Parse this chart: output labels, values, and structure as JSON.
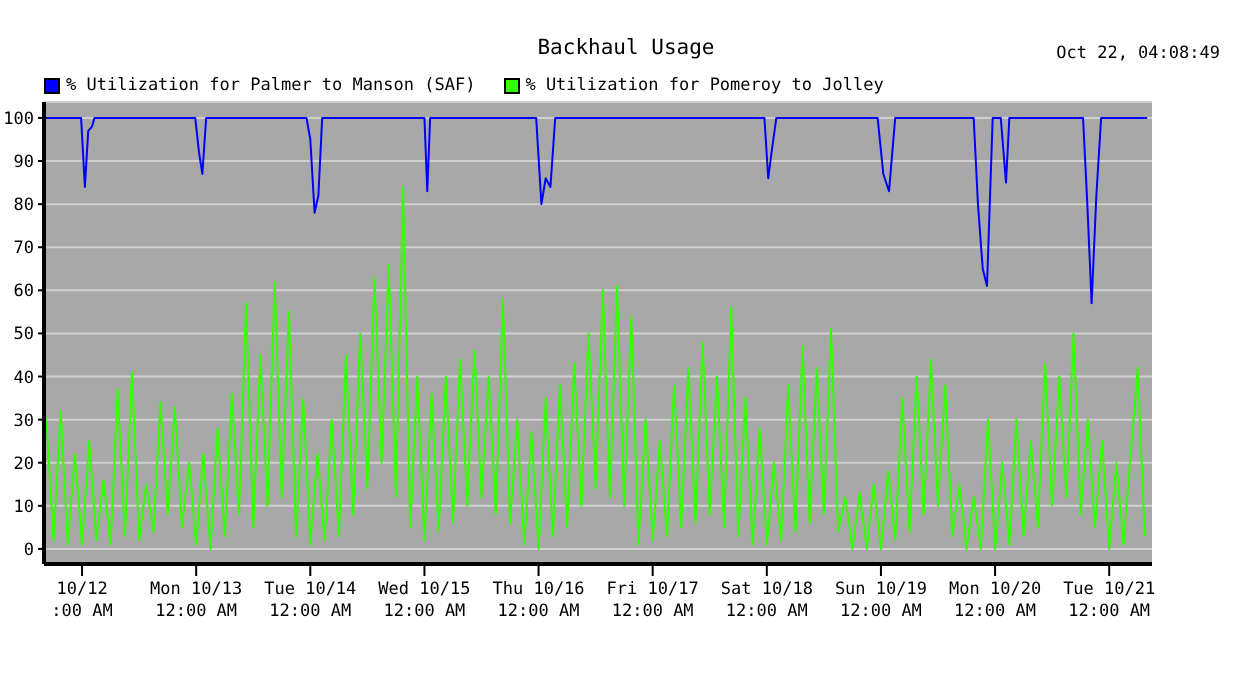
{
  "chart_data": {
    "type": "line",
    "title": "Backhaul Usage",
    "annotations": [
      "Oct 22, 04:08:49"
    ],
    "x": [
      "--10-11T16:30",
      "--10-11T18:00",
      "--10-11T19:30",
      "--10-11T21:00",
      "--10-11T22:30",
      "--10-12T00:00",
      "--10-12T01:30",
      "--10-12T03:00",
      "--10-12T04:30",
      "--10-12T06:00",
      "--10-12T07:30",
      "--10-12T09:00",
      "--10-12T10:30",
      "--10-12T12:00",
      "--10-12T13:30",
      "--10-12T15:00",
      "--10-12T16:30",
      "--10-12T18:00",
      "--10-12T19:30",
      "--10-12T21:00",
      "--10-12T22:30",
      "--10-13T00:00",
      "--10-13T01:30",
      "--10-13T03:00",
      "--10-13T04:30",
      "--10-13T06:00",
      "--10-13T07:30",
      "--10-13T09:00",
      "--10-13T10:30",
      "--10-13T12:00",
      "--10-13T13:30",
      "--10-13T15:00",
      "--10-13T16:30",
      "--10-13T18:00",
      "--10-13T19:30",
      "--10-13T21:00",
      "--10-13T22:30",
      "--10-14T00:00",
      "--10-14T01:30",
      "--10-14T03:00",
      "--10-14T04:30",
      "--10-14T06:00",
      "--10-14T07:30",
      "--10-14T09:00",
      "--10-14T10:30",
      "--10-14T12:00",
      "--10-14T13:30",
      "--10-14T15:00",
      "--10-14T16:30",
      "--10-14T18:00",
      "--10-14T19:30",
      "--10-14T21:00",
      "--10-14T22:30",
      "--10-15T00:00",
      "--10-15T01:30",
      "--10-15T03:00",
      "--10-15T04:30",
      "--10-15T06:00",
      "--10-15T07:30",
      "--10-15T09:00",
      "--10-15T10:30",
      "--10-15T12:00",
      "--10-15T13:30",
      "--10-15T15:00",
      "--10-15T16:30",
      "--10-15T18:00",
      "--10-15T19:30",
      "--10-15T21:00",
      "--10-15T22:30",
      "--10-16T00:00",
      "--10-16T01:30",
      "--10-16T03:00",
      "--10-16T04:30",
      "--10-16T06:00",
      "--10-16T07:30",
      "--10-16T09:00",
      "--10-16T10:30",
      "--10-16T12:00",
      "--10-16T13:30",
      "--10-16T15:00",
      "--10-16T16:30",
      "--10-16T18:00",
      "--10-16T19:30",
      "--10-16T21:00",
      "--10-16T22:30",
      "--10-17T00:00",
      "--10-17T01:30",
      "--10-17T03:00",
      "--10-17T04:30",
      "--10-17T06:00",
      "--10-17T07:30",
      "--10-17T09:00",
      "--10-17T10:30",
      "--10-17T12:00",
      "--10-17T13:30",
      "--10-17T15:00",
      "--10-17T16:30",
      "--10-17T18:00",
      "--10-17T19:30",
      "--10-17T21:00",
      "--10-17T22:30",
      "--10-18T00:00",
      "--10-18T01:30",
      "--10-18T03:00",
      "--10-18T04:30",
      "--10-18T06:00",
      "--10-18T07:30",
      "--10-18T09:00",
      "--10-18T10:30",
      "--10-18T12:00",
      "--10-18T13:30",
      "--10-18T15:00",
      "--10-18T16:30",
      "--10-18T18:00",
      "--10-18T19:30",
      "--10-18T21:00",
      "--10-18T22:30",
      "--10-19T00:00",
      "--10-19T01:30",
      "--10-19T03:00",
      "--10-19T04:30",
      "--10-19T06:00",
      "--10-19T07:30",
      "--10-19T09:00",
      "--10-19T10:30",
      "--10-19T12:00",
      "--10-19T13:30",
      "--10-19T15:00",
      "--10-19T16:30",
      "--10-19T18:00",
      "--10-19T19:30",
      "--10-19T21:00",
      "--10-19T22:30",
      "--10-20T00:00",
      "--10-20T01:30",
      "--10-20T03:00",
      "--10-20T04:30",
      "--10-20T06:00",
      "--10-20T07:30",
      "--10-20T09:00",
      "--10-20T10:30",
      "--10-20T12:00",
      "--10-20T13:30",
      "--10-20T15:00",
      "--10-20T16:30",
      "--10-20T18:00",
      "--10-20T19:30",
      "--10-20T21:00",
      "--10-20T22:30",
      "--10-21T00:00",
      "--10-21T01:30",
      "--10-21T03:00",
      "--10-21T04:30",
      "--10-21T06:00",
      "--10-21T07:30"
    ],
    "series": [
      {
        "name": "% Utilization for Palmer to Manson (SAF)",
        "color": "#0000ff",
        "x": [
          "--10-11T16:00",
          "--10-11T23:48",
          "--10-12T00:36",
          "--10-12T01:18",
          "--10-12T02:06",
          "--10-12T02:36",
          "--10-12T23:48",
          "--10-13T00:36",
          "--10-13T01:18",
          "--10-13T02:06",
          "--10-13T23:12",
          "--10-14T00:00",
          "--10-14T00:54",
          "--10-14T01:42",
          "--10-14T02:30",
          "--10-15T00:00",
          "--10-15T00:36",
          "--10-15T01:12",
          "--10-15T23:30",
          "--10-16T00:36",
          "--10-16T01:30",
          "--10-16T02:30",
          "--10-16T03:30",
          "--10-17T23:30",
          "--10-18T00:18",
          "--10-18T01:00",
          "--10-18T02:00",
          "--10-18T23:18",
          "--10-19T00:30",
          "--10-19T01:42",
          "--10-19T03:00",
          "--10-19T19:30",
          "--10-19T20:24",
          "--10-19T21:24",
          "--10-19T22:18",
          "--10-19T23:30",
          "--10-20T01:12",
          "--10-20T02:18",
          "--10-20T03:00",
          "--10-20T18:30",
          "--10-20T19:24",
          "--10-20T20:18",
          "--10-20T21:18",
          "--10-20T22:18",
          "--10-21T08:00"
        ],
        "values": [
          100,
          100,
          84,
          97,
          98,
          100,
          100,
          92,
          87,
          100,
          100,
          95,
          78,
          82,
          100,
          100,
          83,
          100,
          100,
          80,
          86,
          84,
          100,
          100,
          86,
          92,
          100,
          100,
          87,
          83,
          100,
          100,
          80,
          65,
          61,
          100,
          100,
          85,
          100,
          100,
          80,
          57,
          82,
          100,
          100
        ]
      },
      {
        "name": "% Utilization for Pomeroy to Jolley",
        "color": "#33ff00",
        "values": [
          30,
          2,
          32,
          1,
          22,
          1,
          25,
          2,
          16,
          1,
          37,
          3,
          41,
          2,
          15,
          4,
          34,
          8,
          33,
          5,
          20,
          1,
          22,
          0,
          28,
          3,
          36,
          8,
          57,
          5,
          45,
          10,
          62,
          12,
          55,
          3,
          35,
          1,
          22,
          2,
          30,
          3,
          45,
          8,
          50,
          14,
          63,
          20,
          66,
          12,
          84,
          5,
          40,
          2,
          36,
          4,
          40,
          6,
          44,
          10,
          46,
          12,
          40,
          8,
          58,
          6,
          30,
          1,
          27,
          0,
          35,
          3,
          38,
          5,
          43,
          10,
          50,
          14,
          60,
          12,
          61,
          10,
          54,
          1,
          30,
          2,
          25,
          3,
          38,
          5,
          42,
          6,
          48,
          8,
          40,
          5,
          56,
          3,
          35,
          1,
          28,
          1,
          20,
          2,
          38,
          4,
          47,
          6,
          42,
          8,
          51,
          4,
          12,
          0,
          13,
          0,
          15,
          0,
          18,
          2,
          35,
          4,
          40,
          8,
          44,
          10,
          38,
          3,
          15,
          0,
          12,
          0,
          30,
          0,
          20,
          1,
          30,
          3,
          25,
          5,
          43,
          10,
          40,
          12,
          50,
          8,
          30,
          5,
          25,
          0,
          20,
          1,
          22,
          42,
          3
        ]
      }
    ],
    "xlim": [
      "--10-11T16:00",
      "--10-21T09:00"
    ],
    "xticks": [
      {
        "value": "--10-12",
        "label": "10/12\n:00 AM"
      },
      {
        "value": "--10-13",
        "label": "Mon 10/13\n12:00 AM"
      },
      {
        "value": "--10-14",
        "label": "Tue 10/14\n12:00 AM"
      },
      {
        "value": "--10-15",
        "label": "Wed 10/15\n12:00 AM"
      },
      {
        "value": "--10-16",
        "label": "Thu 10/16\n12:00 AM"
      },
      {
        "value": "--10-17",
        "label": "Fri 10/17\n12:00 AM"
      },
      {
        "value": "--10-18",
        "label": "Sat 10/18\n12:00 AM"
      },
      {
        "value": "--10-19",
        "label": "Sun 10/19\n12:00 AM"
      },
      {
        "value": "--10-20",
        "label": "Mon 10/20\n12:00 AM"
      },
      {
        "value": "--10-21",
        "label": "Tue 10/21\n12:00 AM"
      }
    ],
    "ylim": [
      -3.5,
      103.7
    ],
    "yticks": [
      0,
      10,
      20,
      30,
      40,
      50,
      60,
      70,
      80,
      90,
      100
    ],
    "grid": "y",
    "legend": "top left",
    "line_style": "solid"
  }
}
